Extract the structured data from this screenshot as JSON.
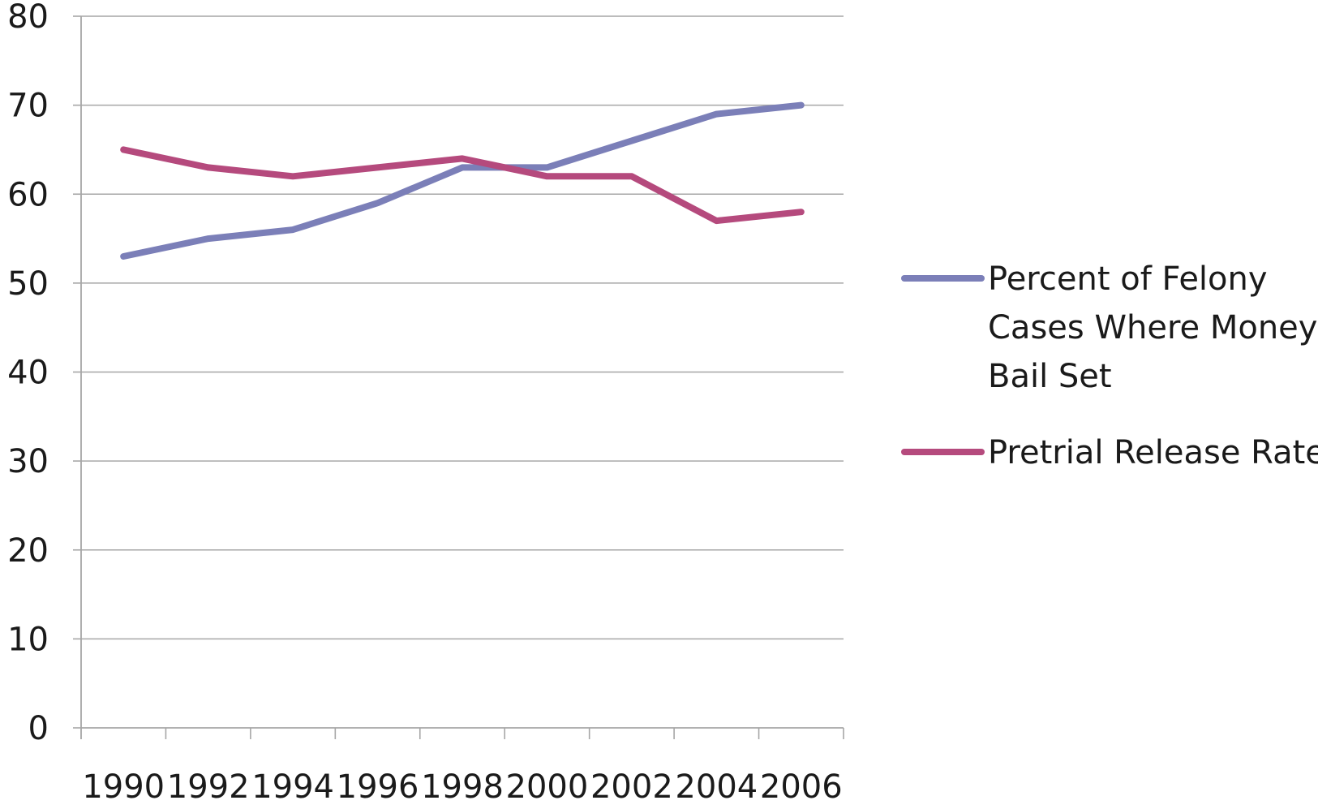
{
  "chart_data": {
    "type": "line",
    "title": "",
    "xlabel": "",
    "ylabel": "",
    "x": [
      1990,
      1992,
      1994,
      1996,
      1998,
      2000,
      2002,
      2004,
      2006
    ],
    "x_tick_labels": [
      "1990",
      "1992",
      "1994",
      "1996",
      "1998",
      "2000",
      "2002",
      "2004",
      "2006"
    ],
    "ylim": [
      0,
      80
    ],
    "y_ticks": [
      0,
      10,
      20,
      30,
      40,
      50,
      60,
      70,
      80
    ],
    "y_tick_labels": [
      "0",
      "10",
      "20",
      "30",
      "40",
      "50",
      "60",
      "70",
      "80"
    ],
    "grid": "horizontal",
    "legend_position": "right",
    "series": [
      {
        "name": "Percent of Felony Cases Where Money Bail Set",
        "legend_lines": [
          "Percent of Felony",
          "Cases Where Money",
          "Bail Set"
        ],
        "color": "#7b7fb8",
        "values": [
          53,
          55,
          56,
          59,
          63,
          63,
          66,
          69,
          70
        ]
      },
      {
        "name": "Pretrial Release Rate",
        "legend_lines": [
          "Pretrial Release Rate"
        ],
        "color": "#b54a7d",
        "values": [
          65,
          63,
          62,
          63,
          64,
          62,
          62,
          57,
          58
        ]
      }
    ]
  }
}
